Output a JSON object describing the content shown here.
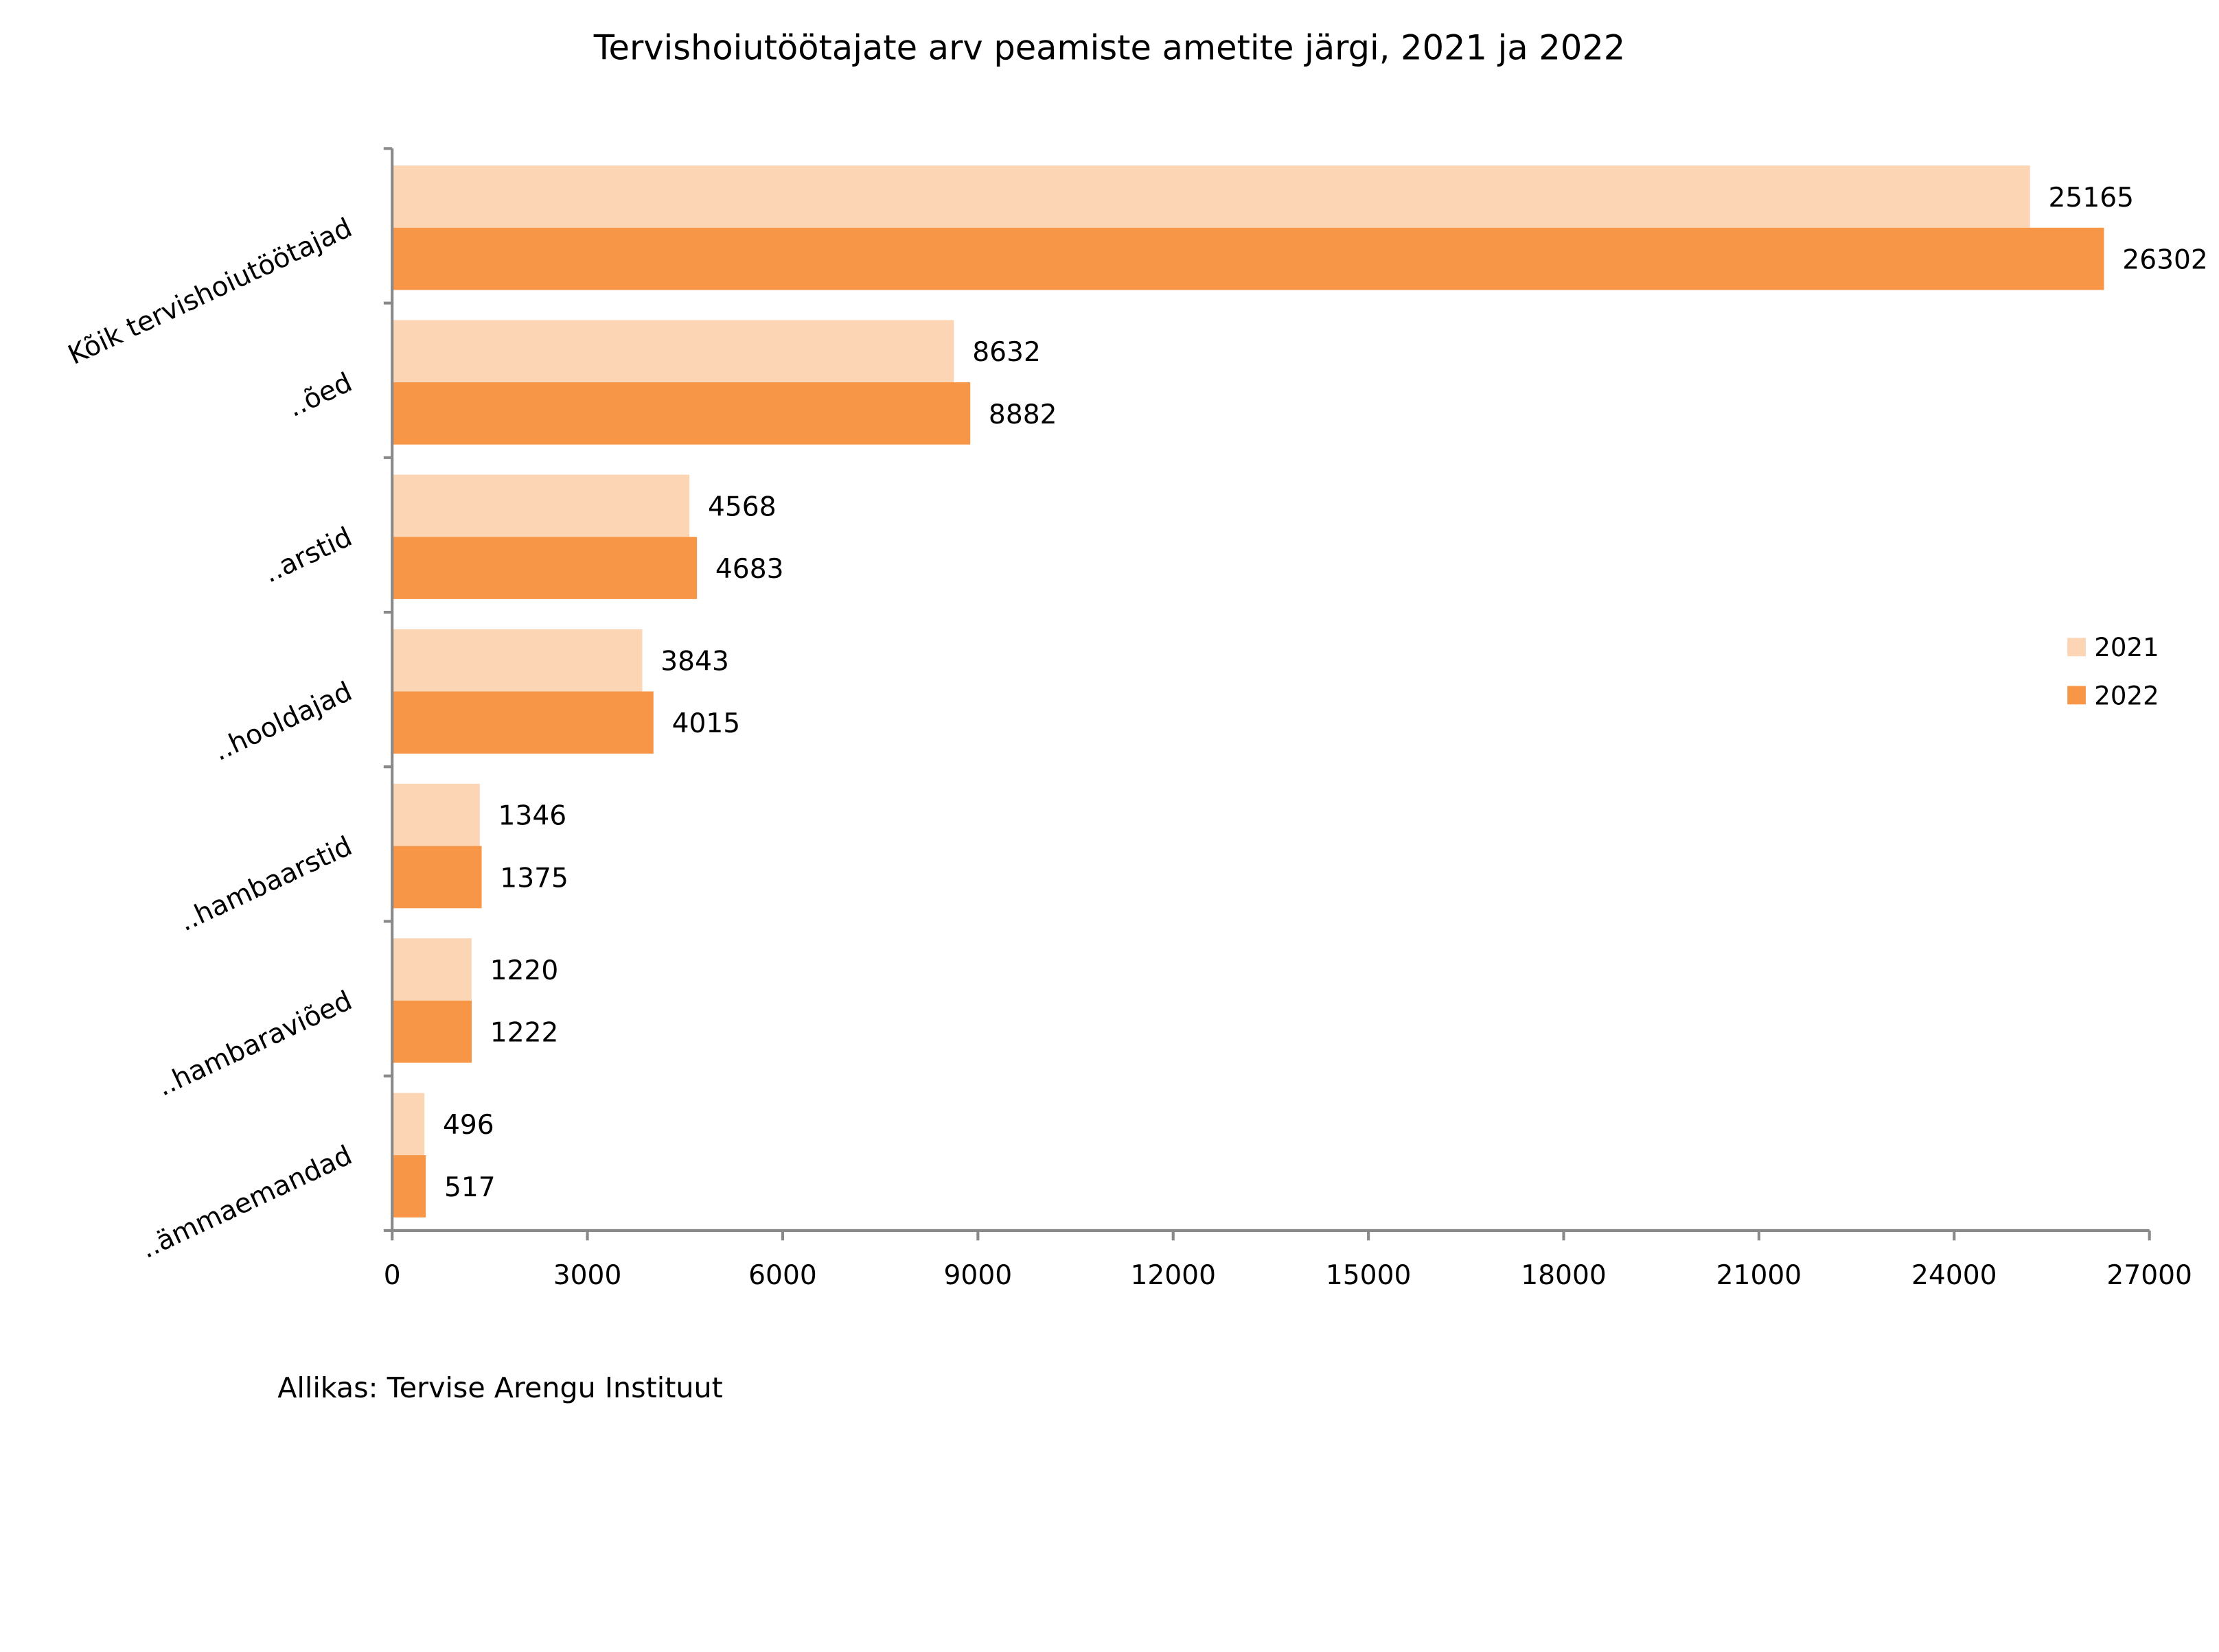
{
  "chart_data": {
    "type": "bar",
    "orientation": "horizontal",
    "title": "Tervishoiutöötajate arv peamiste ametite järgi, 2021 ja 2022",
    "categories": [
      "Kõik tervishoiutöötajad",
      "..õed",
      "..arstid",
      "..hooldajad",
      "..hambaarstid",
      "..hambaraviõed",
      "..ämmaemandad"
    ],
    "series": [
      {
        "name": "2021",
        "color": "#FCD5B5",
        "values": [
          25165,
          8632,
          4568,
          3843,
          1346,
          1220,
          496
        ]
      },
      {
        "name": "2022",
        "color": "#F79646",
        "values": [
          26302,
          8882,
          4683,
          4015,
          1375,
          1222,
          517
        ]
      }
    ],
    "xlim": [
      0,
      27000
    ],
    "xticks": [
      0,
      3000,
      6000,
      9000,
      12000,
      15000,
      18000,
      21000,
      24000,
      27000
    ],
    "grid": false,
    "legend": "right",
    "data_labels": true
  },
  "source": "Allikas: Tervise Arengu Instituut"
}
